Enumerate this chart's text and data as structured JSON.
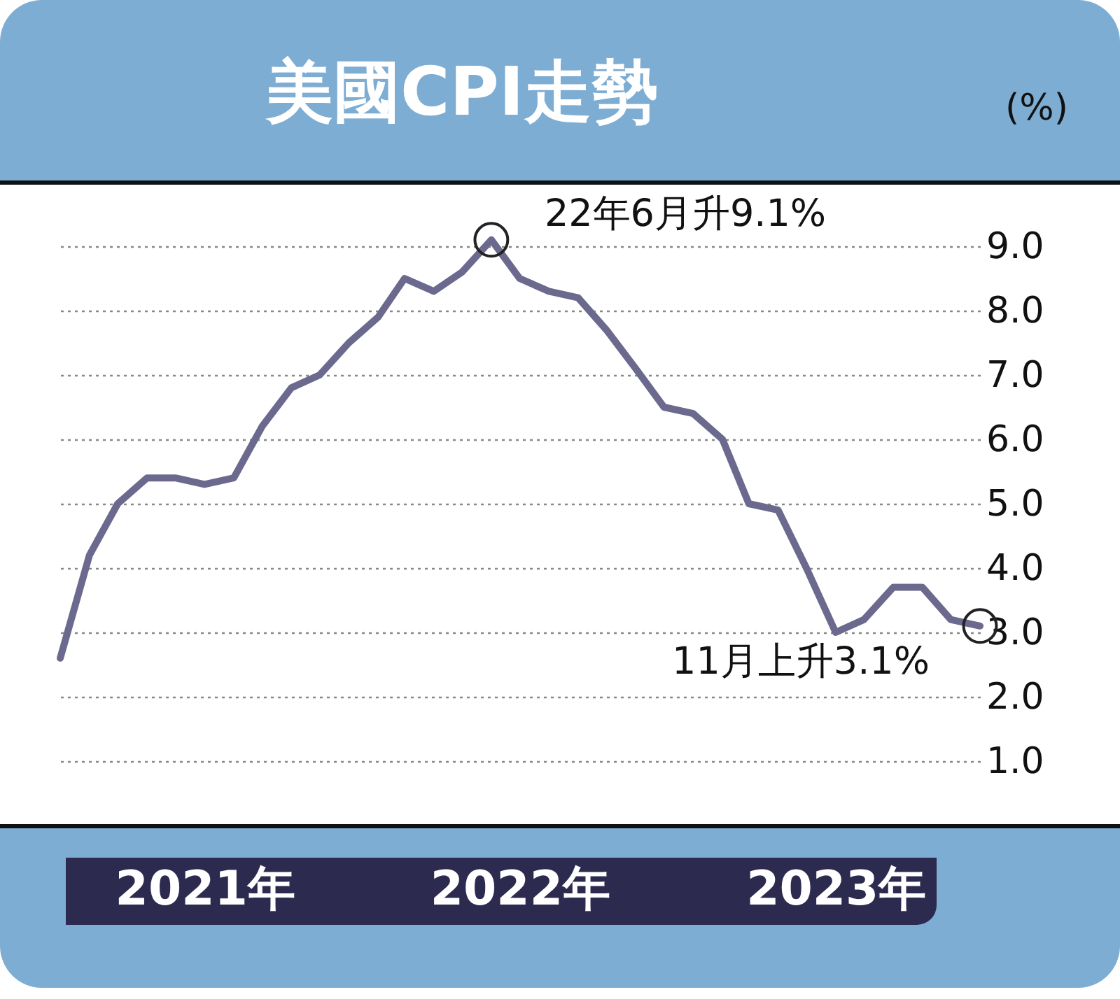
{
  "chart_data": {
    "type": "line",
    "title": "美國CPI走勢",
    "ylabel": "(%)",
    "x": [
      "2021-03",
      "2021-04",
      "2021-05",
      "2021-06",
      "2021-07",
      "2021-08",
      "2021-09",
      "2021-10",
      "2021-11",
      "2021-12",
      "2022-01",
      "2022-02",
      "2022-03",
      "2022-04",
      "2022-05",
      "2022-06",
      "2022-07",
      "2022-08",
      "2022-09",
      "2022-10",
      "2022-11",
      "2022-12",
      "2023-01",
      "2023-02",
      "2023-03",
      "2023-04",
      "2023-05",
      "2023-06",
      "2023-07",
      "2023-08",
      "2023-09",
      "2023-10",
      "2023-11"
    ],
    "series": [
      {
        "color": "#6b6a8e",
        "values": [
          2.6,
          4.2,
          5.0,
          5.4,
          5.4,
          5.3,
          5.4,
          6.2,
          6.8,
          7.0,
          7.5,
          7.9,
          8.5,
          8.3,
          8.6,
          9.1,
          8.5,
          8.3,
          8.2,
          7.7,
          7.1,
          6.5,
          6.4,
          6.0,
          5.0,
          4.9,
          4.0,
          3.0,
          3.2,
          3.7,
          3.7,
          3.2,
          3.1
        ]
      }
    ],
    "xlim": [
      "2021-03",
      "2023-11"
    ],
    "xticks": [
      {
        "value": "2021-08",
        "label": "2021年"
      },
      {
        "value": "2022-07",
        "label": "2022年"
      },
      {
        "value": "2023-06",
        "label": "2023年"
      }
    ],
    "ylim": [
      0,
      10
    ],
    "yticks": [
      {
        "value": 1,
        "label": "1.0"
      },
      {
        "value": 2,
        "label": "2.0"
      },
      {
        "value": 3,
        "label": "3.0"
      },
      {
        "value": 4,
        "label": "4.0"
      },
      {
        "value": 5,
        "label": "5.0"
      },
      {
        "value": 6,
        "label": "6.0"
      },
      {
        "value": 7,
        "label": "7.0"
      },
      {
        "value": 8,
        "label": "8.0"
      },
      {
        "value": 9,
        "label": "9.0"
      }
    ],
    "grid": "y",
    "line_style": "solid",
    "marker": "none",
    "legend": false,
    "annotations": [
      {
        "text": "22年6月升9.1%",
        "x": "2022-06",
        "y": 9.1
      },
      {
        "text": "11月上升3.1%",
        "x": "2023-11",
        "y": 3.1
      }
    ]
  }
}
